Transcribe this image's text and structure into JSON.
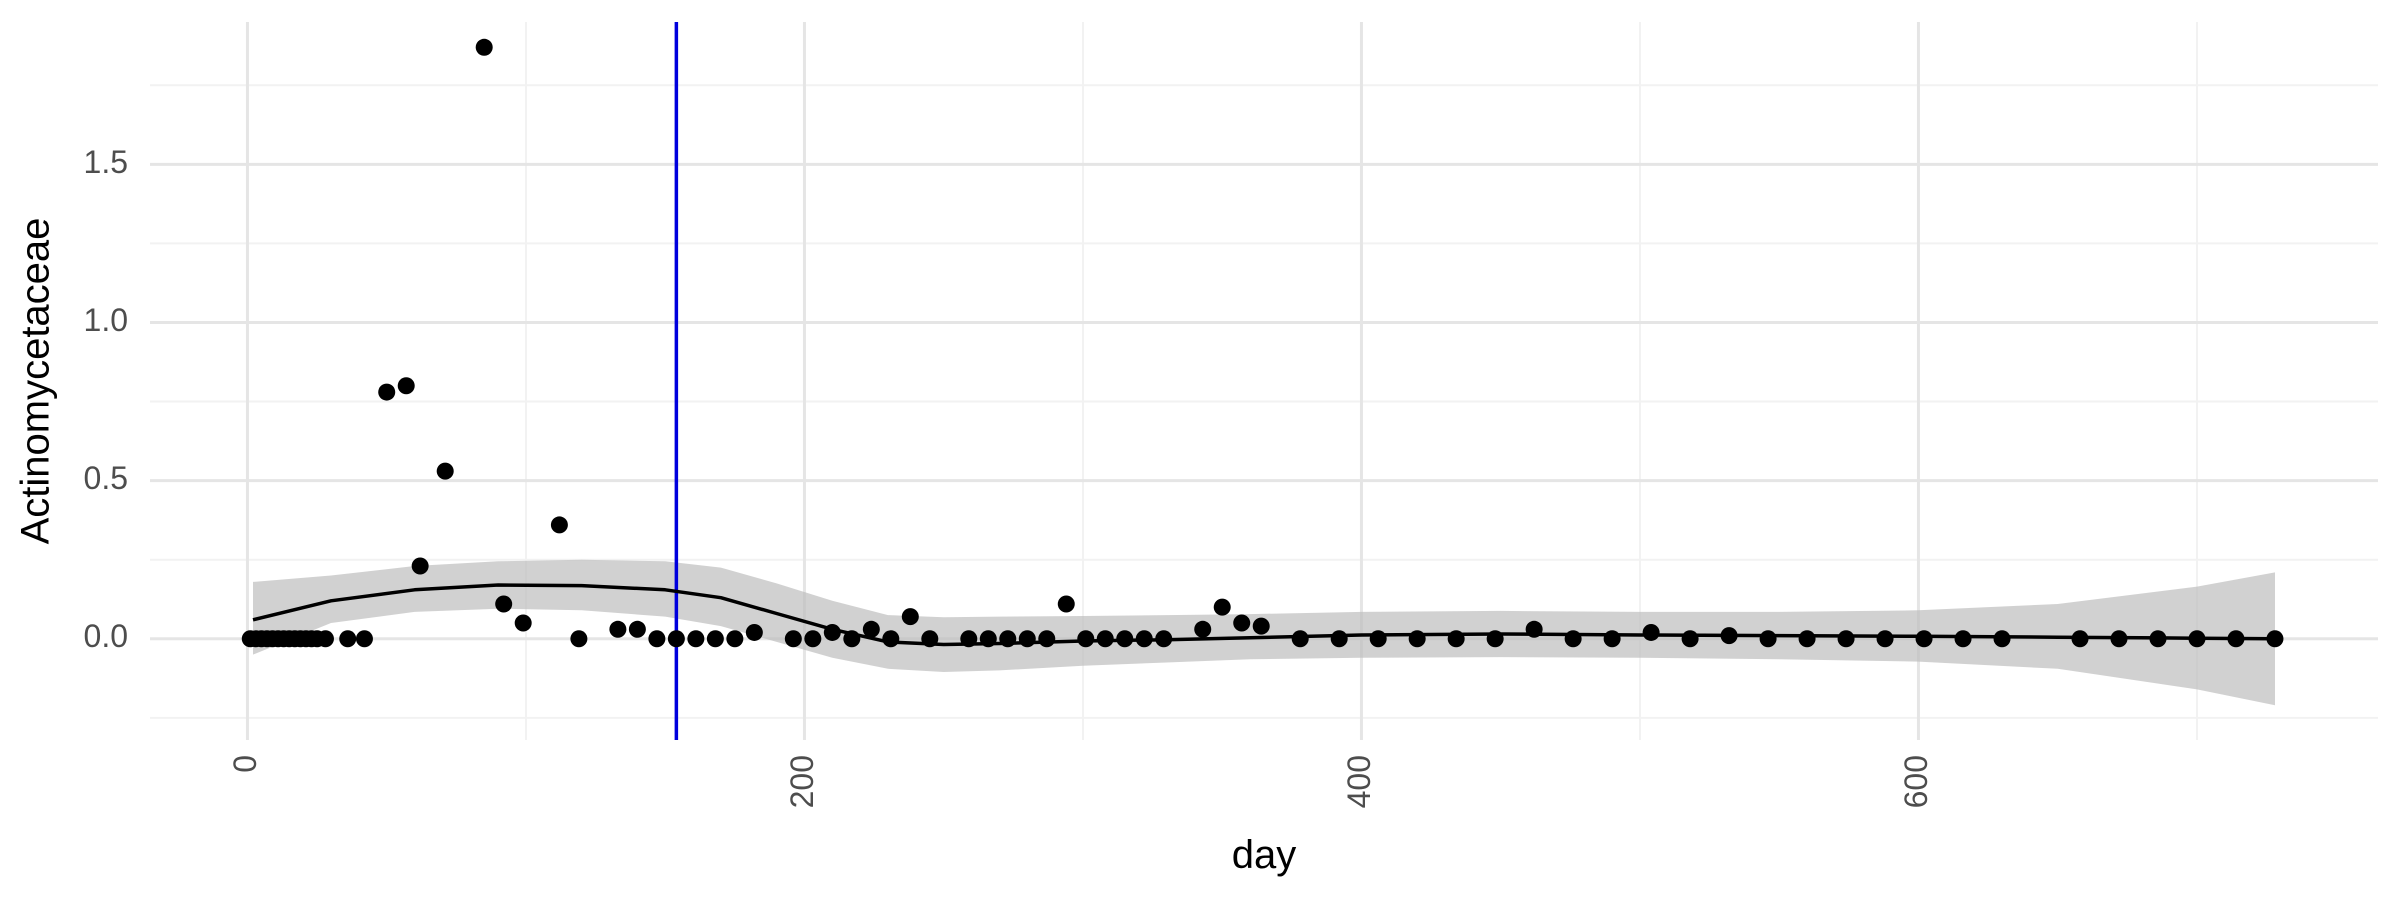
{
  "chart_data": {
    "type": "scatter",
    "title": "",
    "xlabel": "day",
    "ylabel": "Actinomycetaceae",
    "xlim": [
      -35,
      765
    ],
    "ylim": [
      -0.32,
      1.95
    ],
    "x_ticks": [
      0,
      200,
      400,
      600
    ],
    "x_tick_labels": [
      "0",
      "200",
      "400",
      "600"
    ],
    "y_ticks": [
      0.0,
      0.5,
      1.0,
      1.5
    ],
    "y_tick_labels": [
      "0.0",
      "0.5",
      "1.0",
      "1.5"
    ],
    "grid": true,
    "legend": "none",
    "vline": {
      "x": 154,
      "color": "#0000dd"
    },
    "colors": {
      "points": "#000000",
      "smooth_line": "#000000",
      "ribbon": "#bdbdbd",
      "grid_major": "#e5e5e5",
      "grid_minor": "#f2f2f2"
    },
    "points": [
      {
        "x": 1,
        "y": 0
      },
      {
        "x": 3,
        "y": 0
      },
      {
        "x": 5,
        "y": 0
      },
      {
        "x": 7,
        "y": 0
      },
      {
        "x": 9,
        "y": 0
      },
      {
        "x": 11,
        "y": 0
      },
      {
        "x": 13,
        "y": 0
      },
      {
        "x": 15,
        "y": 0
      },
      {
        "x": 17,
        "y": 0
      },
      {
        "x": 19,
        "y": 0
      },
      {
        "x": 21,
        "y": 0
      },
      {
        "x": 23,
        "y": 0
      },
      {
        "x": 25,
        "y": 0
      },
      {
        "x": 28,
        "y": 0
      },
      {
        "x": 36,
        "y": 0
      },
      {
        "x": 42,
        "y": 0
      },
      {
        "x": 50,
        "y": 0.78
      },
      {
        "x": 57,
        "y": 0.8
      },
      {
        "x": 62,
        "y": 0.23
      },
      {
        "x": 71,
        "y": 0.53
      },
      {
        "x": 85,
        "y": 1.87
      },
      {
        "x": 92,
        "y": 0.11
      },
      {
        "x": 99,
        "y": 0.05
      },
      {
        "x": 112,
        "y": 0.36
      },
      {
        "x": 119,
        "y": 0
      },
      {
        "x": 133,
        "y": 0.03
      },
      {
        "x": 140,
        "y": 0.03
      },
      {
        "x": 147,
        "y": 0
      },
      {
        "x": 154,
        "y": 0
      },
      {
        "x": 161,
        "y": 0
      },
      {
        "x": 168,
        "y": 0
      },
      {
        "x": 175,
        "y": 0
      },
      {
        "x": 182,
        "y": 0.02
      },
      {
        "x": 196,
        "y": 0
      },
      {
        "x": 203,
        "y": 0
      },
      {
        "x": 210,
        "y": 0.02
      },
      {
        "x": 217,
        "y": 0
      },
      {
        "x": 224,
        "y": 0.03
      },
      {
        "x": 231,
        "y": 0
      },
      {
        "x": 238,
        "y": 0.07
      },
      {
        "x": 245,
        "y": 0
      },
      {
        "x": 259,
        "y": 0
      },
      {
        "x": 266,
        "y": 0
      },
      {
        "x": 273,
        "y": 0
      },
      {
        "x": 280,
        "y": 0
      },
      {
        "x": 287,
        "y": 0
      },
      {
        "x": 294,
        "y": 0.11
      },
      {
        "x": 301,
        "y": 0
      },
      {
        "x": 308,
        "y": 0
      },
      {
        "x": 315,
        "y": 0
      },
      {
        "x": 322,
        "y": 0
      },
      {
        "x": 329,
        "y": 0
      },
      {
        "x": 343,
        "y": 0.03
      },
      {
        "x": 350,
        "y": 0.1
      },
      {
        "x": 357,
        "y": 0.05
      },
      {
        "x": 364,
        "y": 0.04
      },
      {
        "x": 378,
        "y": 0
      },
      {
        "x": 392,
        "y": 0
      },
      {
        "x": 406,
        "y": 0
      },
      {
        "x": 420,
        "y": 0
      },
      {
        "x": 434,
        "y": 0
      },
      {
        "x": 448,
        "y": 0
      },
      {
        "x": 462,
        "y": 0.03
      },
      {
        "x": 476,
        "y": 0
      },
      {
        "x": 490,
        "y": 0
      },
      {
        "x": 504,
        "y": 0.02
      },
      {
        "x": 518,
        "y": 0
      },
      {
        "x": 532,
        "y": 0.01
      },
      {
        "x": 546,
        "y": 0
      },
      {
        "x": 560,
        "y": 0
      },
      {
        "x": 574,
        "y": 0
      },
      {
        "x": 588,
        "y": 0
      },
      {
        "x": 602,
        "y": 0
      },
      {
        "x": 616,
        "y": 0
      },
      {
        "x": 630,
        "y": 0
      },
      {
        "x": 658,
        "y": 0
      },
      {
        "x": 672,
        "y": 0
      },
      {
        "x": 686,
        "y": 0
      },
      {
        "x": 700,
        "y": 0
      },
      {
        "x": 714,
        "y": 0
      },
      {
        "x": 728,
        "y": 0
      }
    ],
    "smooth": {
      "x": [
        2,
        30,
        60,
        90,
        120,
        150,
        170,
        190,
        210,
        230,
        250,
        270,
        300,
        330,
        360,
        400,
        450,
        500,
        550,
        600,
        650,
        700,
        728
      ],
      "y": [
        0.06,
        0.12,
        0.155,
        0.17,
        0.168,
        0.155,
        0.13,
        0.08,
        0.03,
        -0.01,
        -0.018,
        -0.015,
        -0.007,
        -0.003,
        0.003,
        0.012,
        0.015,
        0.012,
        0.01,
        0.008,
        0.005,
        0.002,
        0.0
      ],
      "lower": [
        -0.05,
        0.05,
        0.085,
        0.095,
        0.09,
        0.07,
        0.04,
        -0.01,
        -0.06,
        -0.095,
        -0.105,
        -0.1,
        -0.085,
        -0.075,
        -0.065,
        -0.06,
        -0.058,
        -0.06,
        -0.065,
        -0.072,
        -0.095,
        -0.16,
        -0.21
      ],
      "upper": [
        0.18,
        0.2,
        0.23,
        0.245,
        0.25,
        0.245,
        0.225,
        0.175,
        0.12,
        0.075,
        0.068,
        0.07,
        0.072,
        0.075,
        0.078,
        0.085,
        0.088,
        0.085,
        0.085,
        0.09,
        0.11,
        0.165,
        0.21
      ]
    }
  }
}
